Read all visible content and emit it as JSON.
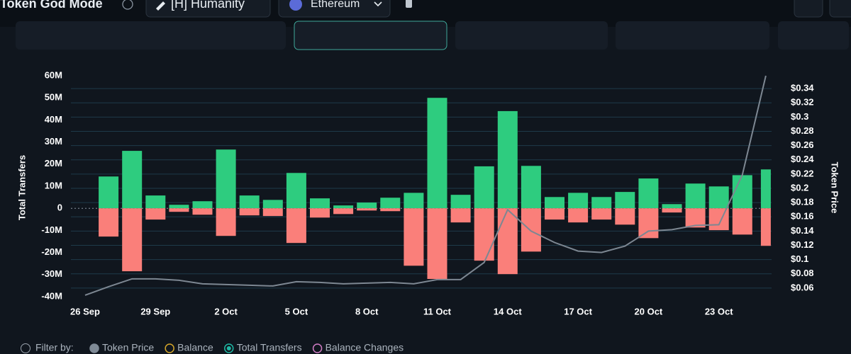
{
  "header": {
    "title": "Token God Mode",
    "token": "[H] Humanity",
    "network": "Ethereum"
  },
  "filters": {
    "label": "Filter by:",
    "items": [
      {
        "name": "Token Price",
        "color": "#7f8a96"
      },
      {
        "name": "Balance",
        "color": "#d4a62a"
      },
      {
        "name": "Total Transfers",
        "color": "#1fb8a4"
      },
      {
        "name": "Balance Changes",
        "color": "#d07cc4"
      }
    ]
  },
  "chart_data": {
    "type": "bar",
    "y_label": "Total Transfers",
    "y2_label": "Token Price",
    "categories": [
      "26 Sep",
      null,
      null,
      "29 Sep",
      null,
      null,
      "2 Oct",
      null,
      null,
      "5 Oct",
      null,
      null,
      "8 Oct",
      null,
      null,
      "11 Oct",
      null,
      null,
      "14 Oct",
      null,
      null,
      "17 Oct",
      null,
      null,
      "20 Oct",
      null,
      null,
      "23 Oct",
      null,
      null
    ],
    "series": [
      {
        "color": "#2ecc7f",
        "values": [
          null,
          14400000,
          26000000,
          5800000,
          1600000,
          3200000,
          26600000,
          5800000,
          3800000,
          16000000,
          4500000,
          1300000,
          2600000,
          4800000,
          7000000,
          50000000,
          6100000,
          19000000,
          44000000,
          19200000,
          5100000,
          7000000,
          5100000,
          7400000,
          13500000,
          1900000,
          11200000,
          9900000,
          15000000,
          17600000
        ]
      },
      {
        "color": "#fa7f7a",
        "values": [
          null,
          -12800000,
          -28500000,
          -5100000,
          -1600000,
          -2900000,
          -12500000,
          -3200000,
          -3500000,
          -15700000,
          -4200000,
          -2600000,
          -1000000,
          -1300000,
          -26000000,
          -32000000,
          -6400000,
          -23700000,
          -29800000,
          -19600000,
          -5100000,
          -6400000,
          -5100000,
          -7400000,
          -13500000,
          -1900000,
          -8700000,
          -9900000,
          -11900000,
          -17000000
        ]
      },
      {
        "type": "line",
        "axis": "y2",
        "color": "#7d8792",
        "values": [
          0.05,
          0.062,
          0.073,
          0.073,
          0.071,
          0.066,
          0.065,
          0.064,
          0.063,
          0.069,
          0.068,
          0.066,
          0.067,
          0.068,
          0.066,
          0.072,
          0.072,
          0.096,
          0.17,
          0.14,
          0.124,
          0.112,
          0.11,
          0.119,
          0.14,
          0.142,
          0.148,
          0.149,
          0.219,
          0.358
        ]
      }
    ],
    "ylim": [
      -40000000,
      60000000
    ],
    "yticks": [
      {
        "value": -40000000,
        "label": "-40M"
      },
      {
        "value": -30000000,
        "label": "-30M"
      },
      {
        "value": -20000000,
        "label": "-20M"
      },
      {
        "value": -10000000,
        "label": "-10M"
      },
      0,
      {
        "value": 10000000,
        "label": "10M"
      },
      {
        "value": 20000000,
        "label": "20M"
      },
      {
        "value": 30000000,
        "label": "30M"
      },
      {
        "value": 40000000,
        "label": "40M"
      },
      {
        "value": 50000000,
        "label": "50M"
      },
      {
        "value": 60000000,
        "label": "60M"
      }
    ],
    "y2lim": [
      0.048,
      0.358
    ],
    "y2ticks": [
      {
        "value": 0.06,
        "label": "$0.06"
      },
      {
        "value": 0.08,
        "label": "$0.08"
      },
      {
        "value": 0.1,
        "label": "$0.1"
      },
      {
        "value": 0.12,
        "label": "$0.12"
      },
      {
        "value": 0.14,
        "label": "$0.14"
      },
      {
        "value": 0.16,
        "label": "$0.16"
      },
      {
        "value": 0.18,
        "label": "$0.18"
      },
      {
        "value": 0.2,
        "label": "$0.2"
      },
      {
        "value": 0.22,
        "label": "$0.22"
      },
      {
        "value": 0.24,
        "label": "$0.24"
      },
      {
        "value": 0.26,
        "label": "$0.26"
      },
      {
        "value": 0.28,
        "label": "$0.28"
      },
      {
        "value": 0.3,
        "label": "$0.3"
      },
      {
        "value": 0.32,
        "label": "$0.32"
      },
      {
        "value": 0.34,
        "label": "$0.34"
      }
    ],
    "grid": true
  }
}
